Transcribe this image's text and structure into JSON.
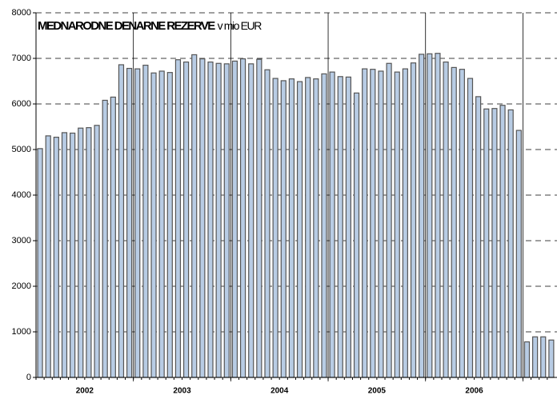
{
  "chart_data": {
    "type": "bar",
    "title": "MEDNARODNE DENARNE REZERVE",
    "subtitle": "v mio EUR",
    "year_labels": [
      "2002",
      "2003",
      "2004",
      "2005",
      "2006"
    ],
    "values": [
      5020,
      5300,
      5270,
      5370,
      5360,
      5470,
      5480,
      5530,
      6080,
      6150,
      6860,
      6780,
      6770,
      6850,
      6680,
      6720,
      6690,
      6970,
      6920,
      7080,
      6990,
      6920,
      6890,
      6880,
      6940,
      6990,
      6880,
      6980,
      6750,
      6560,
      6510,
      6550,
      6490,
      6580,
      6550,
      6660,
      6700,
      6600,
      6590,
      6240,
      6770,
      6760,
      6720,
      6890,
      6700,
      6770,
      6900,
      7090,
      7100,
      7110,
      6920,
      6800,
      6760,
      6560,
      6160,
      5890,
      5900,
      5970,
      5870,
      5420,
      780,
      890,
      890,
      820
    ],
    "color": "#b8cce4",
    "ylim": [
      0,
      8000
    ],
    "yticks": [
      0,
      1000,
      2000,
      3000,
      4000,
      5000,
      6000,
      7000,
      8000
    ],
    "grid": true
  }
}
